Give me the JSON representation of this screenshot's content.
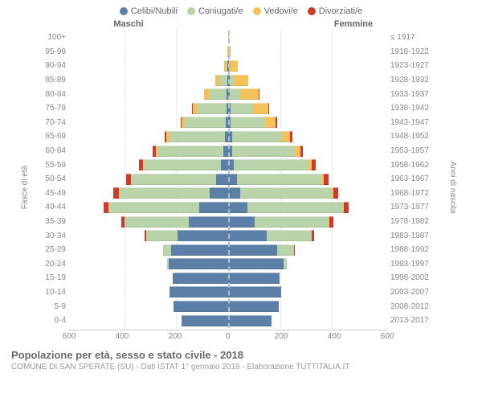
{
  "legend": {
    "items": [
      {
        "label": "Celibi/Nubili",
        "color": "#5b7fa6"
      },
      {
        "label": "Coniugati/e",
        "color": "#b9d4a8"
      },
      {
        "label": "Vedovi/e",
        "color": "#f6c15b"
      },
      {
        "label": "Divorziati/e",
        "color": "#ce3a2e"
      }
    ]
  },
  "headers": {
    "left": "Maschi",
    "right": "Femmine"
  },
  "axis": {
    "left_title": "Fasce di età",
    "right_title": "Anni di nascita",
    "x_max": 600,
    "x_ticks": [
      600,
      400,
      200,
      0,
      200,
      400,
      600
    ]
  },
  "colors": {
    "single": "#5b7fa6",
    "married": "#b9d4a8",
    "widowed": "#f6c15b",
    "divorced": "#ce3a2e",
    "grid": "#d8d8d8",
    "center": "#b0bfc9",
    "bg": "#ffffff"
  },
  "rows": [
    {
      "age": "100+",
      "year": "≤ 1917",
      "m": {
        "s": 0,
        "c": 0,
        "w": 0,
        "d": 0
      },
      "f": {
        "s": 0,
        "c": 0,
        "w": 2,
        "d": 0
      }
    },
    {
      "age": "95-99",
      "year": "1918-1922",
      "m": {
        "s": 0,
        "c": 0,
        "w": 3,
        "d": 0
      },
      "f": {
        "s": 0,
        "c": 0,
        "w": 8,
        "d": 0
      }
    },
    {
      "age": "90-94",
      "year": "1923-1927",
      "m": {
        "s": 2,
        "c": 5,
        "w": 8,
        "d": 0
      },
      "f": {
        "s": 3,
        "c": 4,
        "w": 28,
        "d": 0
      }
    },
    {
      "age": "85-89",
      "year": "1928-1932",
      "m": {
        "s": 3,
        "c": 30,
        "w": 15,
        "d": 0
      },
      "f": {
        "s": 5,
        "c": 15,
        "w": 55,
        "d": 0
      }
    },
    {
      "age": "80-84",
      "year": "1933-1937",
      "m": {
        "s": 5,
        "c": 65,
        "w": 20,
        "d": 2
      },
      "f": {
        "s": 6,
        "c": 40,
        "w": 70,
        "d": 2
      }
    },
    {
      "age": "75-79",
      "year": "1938-1942",
      "m": {
        "s": 6,
        "c": 110,
        "w": 18,
        "d": 3
      },
      "f": {
        "s": 8,
        "c": 85,
        "w": 60,
        "d": 3
      }
    },
    {
      "age": "70-74",
      "year": "1943-1947",
      "m": {
        "s": 8,
        "c": 155,
        "w": 12,
        "d": 5
      },
      "f": {
        "s": 10,
        "c": 130,
        "w": 40,
        "d": 5
      }
    },
    {
      "age": "65-69",
      "year": "1948-1952",
      "m": {
        "s": 12,
        "c": 210,
        "w": 10,
        "d": 8
      },
      "f": {
        "s": 14,
        "c": 190,
        "w": 30,
        "d": 8
      }
    },
    {
      "age": "60-64",
      "year": "1953-1957",
      "m": {
        "s": 18,
        "c": 250,
        "w": 6,
        "d": 10
      },
      "f": {
        "s": 16,
        "c": 235,
        "w": 22,
        "d": 10
      }
    },
    {
      "age": "55-59",
      "year": "1958-1962",
      "m": {
        "s": 28,
        "c": 290,
        "w": 4,
        "d": 14
      },
      "f": {
        "s": 22,
        "c": 280,
        "w": 14,
        "d": 14
      }
    },
    {
      "age": "50-54",
      "year": "1963-1967",
      "m": {
        "s": 45,
        "c": 320,
        "w": 3,
        "d": 18
      },
      "f": {
        "s": 32,
        "c": 320,
        "w": 10,
        "d": 18
      }
    },
    {
      "age": "45-49",
      "year": "1968-1972",
      "m": {
        "s": 70,
        "c": 340,
        "w": 2,
        "d": 20
      },
      "f": {
        "s": 45,
        "c": 345,
        "w": 6,
        "d": 20
      }
    },
    {
      "age": "40-44",
      "year": "1973-1977",
      "m": {
        "s": 110,
        "c": 340,
        "w": 1,
        "d": 18
      },
      "f": {
        "s": 72,
        "c": 360,
        "w": 4,
        "d": 20
      }
    },
    {
      "age": "35-39",
      "year": "1978-1982",
      "m": {
        "s": 150,
        "c": 240,
        "w": 0,
        "d": 12
      },
      "f": {
        "s": 100,
        "c": 280,
        "w": 2,
        "d": 14
      }
    },
    {
      "age": "30-34",
      "year": "1983-1987",
      "m": {
        "s": 190,
        "c": 120,
        "w": 0,
        "d": 6
      },
      "f": {
        "s": 145,
        "c": 170,
        "w": 0,
        "d": 8
      }
    },
    {
      "age": "25-29",
      "year": "1988-1992",
      "m": {
        "s": 215,
        "c": 30,
        "w": 0,
        "d": 2
      },
      "f": {
        "s": 185,
        "c": 65,
        "w": 0,
        "d": 3
      }
    },
    {
      "age": "20-24",
      "year": "1993-1997",
      "m": {
        "s": 225,
        "c": 4,
        "w": 0,
        "d": 0
      },
      "f": {
        "s": 210,
        "c": 10,
        "w": 0,
        "d": 0
      }
    },
    {
      "age": "15-19",
      "year": "1998-2002",
      "m": {
        "s": 210,
        "c": 0,
        "w": 0,
        "d": 0
      },
      "f": {
        "s": 195,
        "c": 0,
        "w": 0,
        "d": 0
      }
    },
    {
      "age": "10-14",
      "year": "2003-2007",
      "m": {
        "s": 220,
        "c": 0,
        "w": 0,
        "d": 0
      },
      "f": {
        "s": 200,
        "c": 0,
        "w": 0,
        "d": 0
      }
    },
    {
      "age": "5-9",
      "year": "2008-2012",
      "m": {
        "s": 205,
        "c": 0,
        "w": 0,
        "d": 0
      },
      "f": {
        "s": 190,
        "c": 0,
        "w": 0,
        "d": 0
      }
    },
    {
      "age": "0-4",
      "year": "2013-2017",
      "m": {
        "s": 175,
        "c": 0,
        "w": 0,
        "d": 0
      },
      "f": {
        "s": 165,
        "c": 0,
        "w": 0,
        "d": 0
      }
    }
  ],
  "footer": {
    "title": "Popolazione per età, sesso e stato civile - 2018",
    "subtitle": "COMUNE DI SAN SPERATE (SU) - Dati ISTAT 1° gennaio 2018 - Elaborazione TUTTITALIA.IT"
  }
}
